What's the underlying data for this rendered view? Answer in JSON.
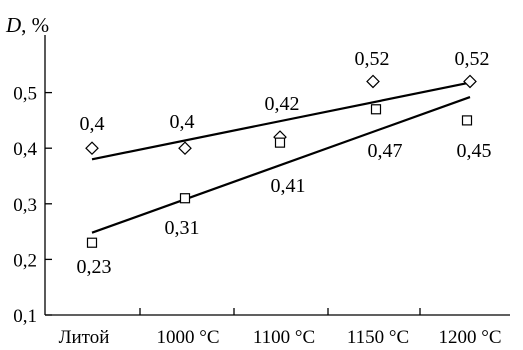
{
  "chart_data": {
    "type": "scatter",
    "ylabel_symbol": "D",
    "ylabel_unit": ", %",
    "categories": [
      "Литой",
      "1000 °С",
      "1100 °С",
      "1150 °С",
      "1200 °С"
    ],
    "yticks": [
      "0,1",
      "0,2",
      "0,3",
      "0,4",
      "0,5"
    ],
    "ylim": [
      0.1,
      0.6
    ],
    "grid": false,
    "legend": "none",
    "series": [
      {
        "marker": "diamond",
        "x": [
          0,
          1,
          2,
          3,
          4
        ],
        "values": [
          0.4,
          0.4,
          0.42,
          0.52,
          0.52
        ],
        "labels": [
          "0,4",
          "0,4",
          "0,42",
          "0,52",
          "0,52"
        ],
        "trend": [
          0.38,
          0.518
        ]
      },
      {
        "marker": "square",
        "x": [
          0,
          1,
          2,
          3,
          4
        ],
        "values": [
          0.23,
          0.31,
          0.41,
          0.47,
          0.45
        ],
        "labels": [
          "0,23",
          "0,31",
          "0,41",
          "0,47",
          "0,45"
        ],
        "trend": [
          0.248,
          0.492
        ]
      }
    ]
  },
  "colors": {
    "ink": "#000000",
    "background": "#ffffff"
  }
}
